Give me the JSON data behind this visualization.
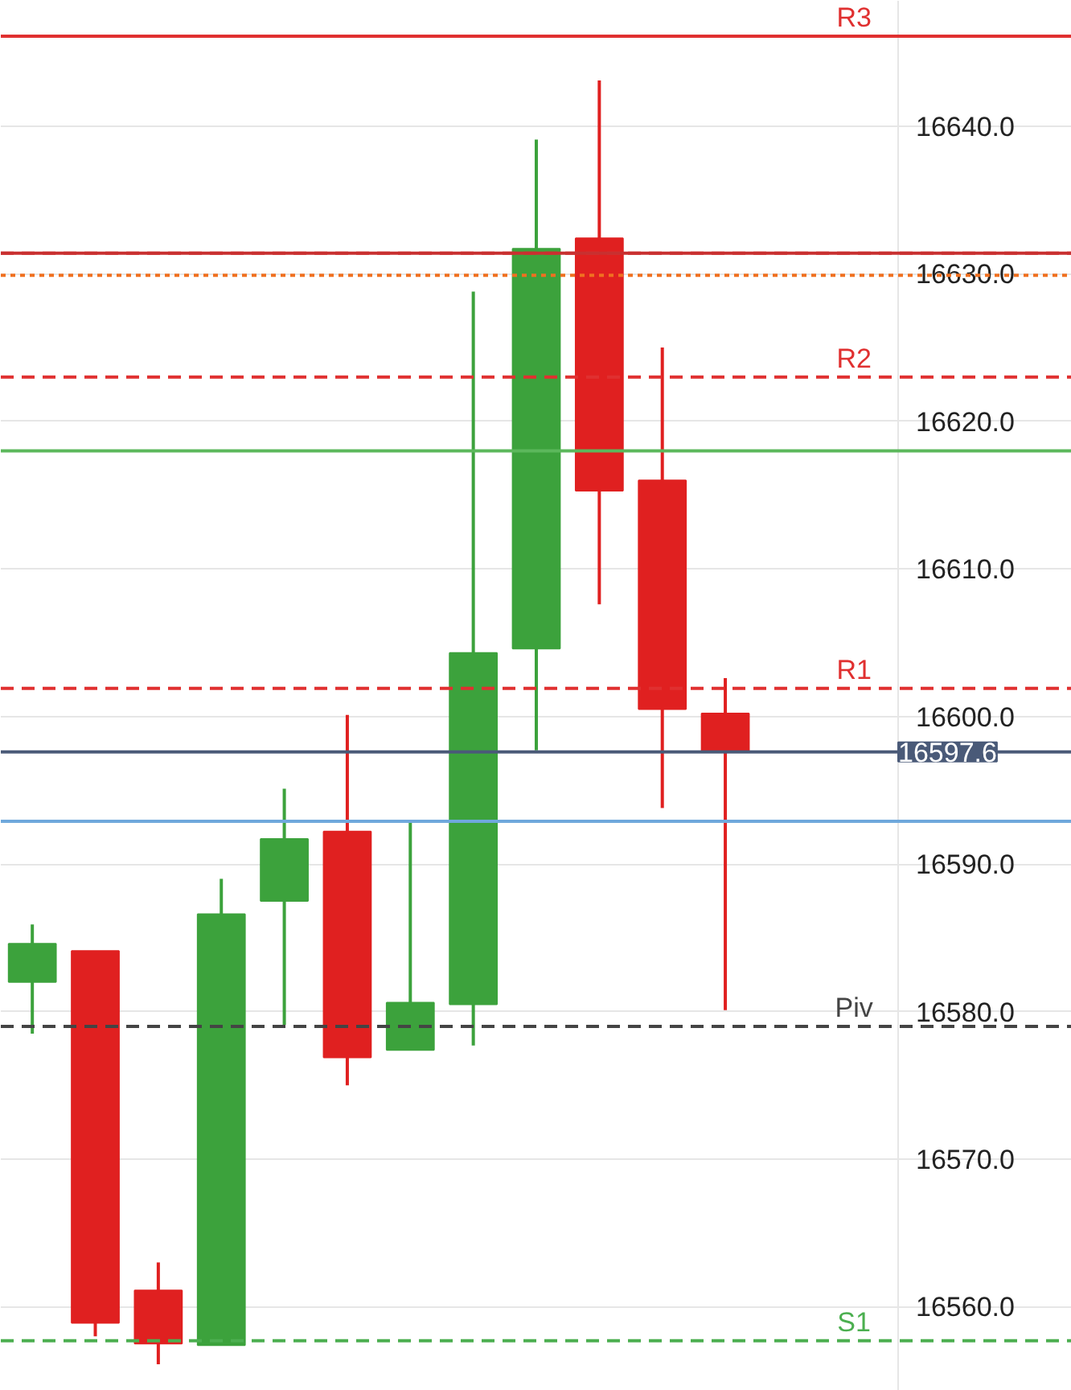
{
  "chart_data": {
    "type": "candlestick",
    "categories": [
      null,
      null,
      null,
      null,
      null,
      null,
      null,
      null,
      null,
      null,
      null,
      null,
      null,
      null,
      null,
      null,
      null
    ],
    "ohlc": [
      [
        16582.0,
        16585.9,
        16578.5,
        16584.6
      ],
      [
        16584.1,
        16584.1,
        16558.0,
        16558.9
      ],
      [
        16561.1,
        16563.0,
        16556.1,
        16557.5
      ],
      [
        16557.4,
        16589.0,
        16557.4,
        16586.6
      ],
      [
        16587.5,
        16595.1,
        16579.1,
        16591.7
      ],
      [
        16592.2,
        16600.1,
        16575.0,
        16576.9
      ],
      [
        16577.4,
        16592.9,
        16577.4,
        16580.6
      ],
      [
        16580.5,
        16628.8,
        16577.7,
        16604.3
      ],
      [
        16604.6,
        16639.1,
        16597.7,
        16631.7
      ],
      [
        16632.4,
        16643.1,
        16607.6,
        16615.3
      ],
      [
        16616.0,
        16625.0,
        16593.8,
        16600.5
      ],
      [
        16600.2,
        16602.6,
        16580.1,
        16597.6
      ],
      null,
      null,
      null,
      null,
      null
    ],
    "colors": [
      "#3ca23c",
      "#e02020",
      "#e02020",
      "#3ca23c",
      "#3ca23c",
      "#e02020",
      "#3ca23c",
      "#3ca23c",
      "#3ca23c",
      "#e02020",
      "#e02020",
      "#e02020",
      null,
      null,
      null,
      null,
      null
    ],
    "ylim": [
      16554.3,
      16648.5
    ],
    "yticks": [
      {
        "value": 16560,
        "label": "16560.0"
      },
      {
        "value": 16570,
        "label": "16570.0"
      },
      {
        "value": 16580,
        "label": "16580.0"
      },
      {
        "value": 16590,
        "label": "16590.0"
      },
      {
        "value": 16600,
        "label": "16600.0"
      },
      {
        "value": 16610,
        "label": "16610.0"
      },
      {
        "value": 16620,
        "label": "16620.0"
      },
      {
        "value": 16630,
        "label": "16630.0"
      },
      {
        "value": 16640,
        "label": "16640.0"
      }
    ],
    "grid": "y",
    "tick_labels": "y",
    "ref_lines": [
      {
        "axis": "y",
        "value": 16646.1,
        "label": "R3",
        "color": "#e03030",
        "line_style": "solid"
      },
      {
        "axis": "y",
        "value": 16631.4,
        "color": "#e03030",
        "line_style": "dashed"
      },
      {
        "axis": "y",
        "value": 16631.4,
        "color": "#c83030",
        "line_style": "solid"
      },
      {
        "axis": "y",
        "value": 16629.9,
        "color": "#f07020",
        "line_style": "dotted"
      },
      {
        "axis": "y",
        "value": 16623.0,
        "label": "R2",
        "color": "#e03030",
        "line_style": "dashed"
      },
      {
        "axis": "y",
        "value": 16618.0,
        "color": "#5cb85c",
        "line_style": "solid"
      },
      {
        "axis": "y",
        "value": 16601.9,
        "label": "R1",
        "color": "#e03030",
        "line_style": "dashed"
      },
      {
        "axis": "y",
        "value": 16597.6,
        "label": "16597.6",
        "color": "#4a5a78",
        "line_style": "solid"
      },
      {
        "axis": "y",
        "value": 16592.9,
        "color": "#6fa8dc",
        "line_style": "solid"
      },
      {
        "axis": "y",
        "value": 16579.0,
        "label": "Piv",
        "color": "#444444",
        "line_style": "dashed"
      },
      {
        "axis": "y",
        "value": 16557.7,
        "label": "S1",
        "color": "#4caf50",
        "line_style": "dashed"
      }
    ]
  }
}
